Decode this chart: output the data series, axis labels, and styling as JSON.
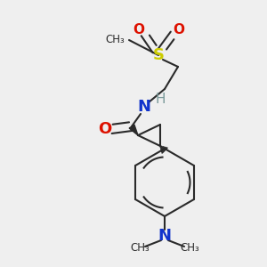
{
  "background_color": "#efefef",
  "bond_color": "#2a2a2a",
  "bond_width": 1.5,
  "S_color": "#cccc00",
  "O_color": "#dd1100",
  "N_color": "#1133cc",
  "H_color": "#7a9a9a",
  "figsize": [
    3.0,
    3.0
  ],
  "dpi": 100,
  "xlim": [
    0,
    300
  ],
  "ylim": [
    0,
    300
  ]
}
